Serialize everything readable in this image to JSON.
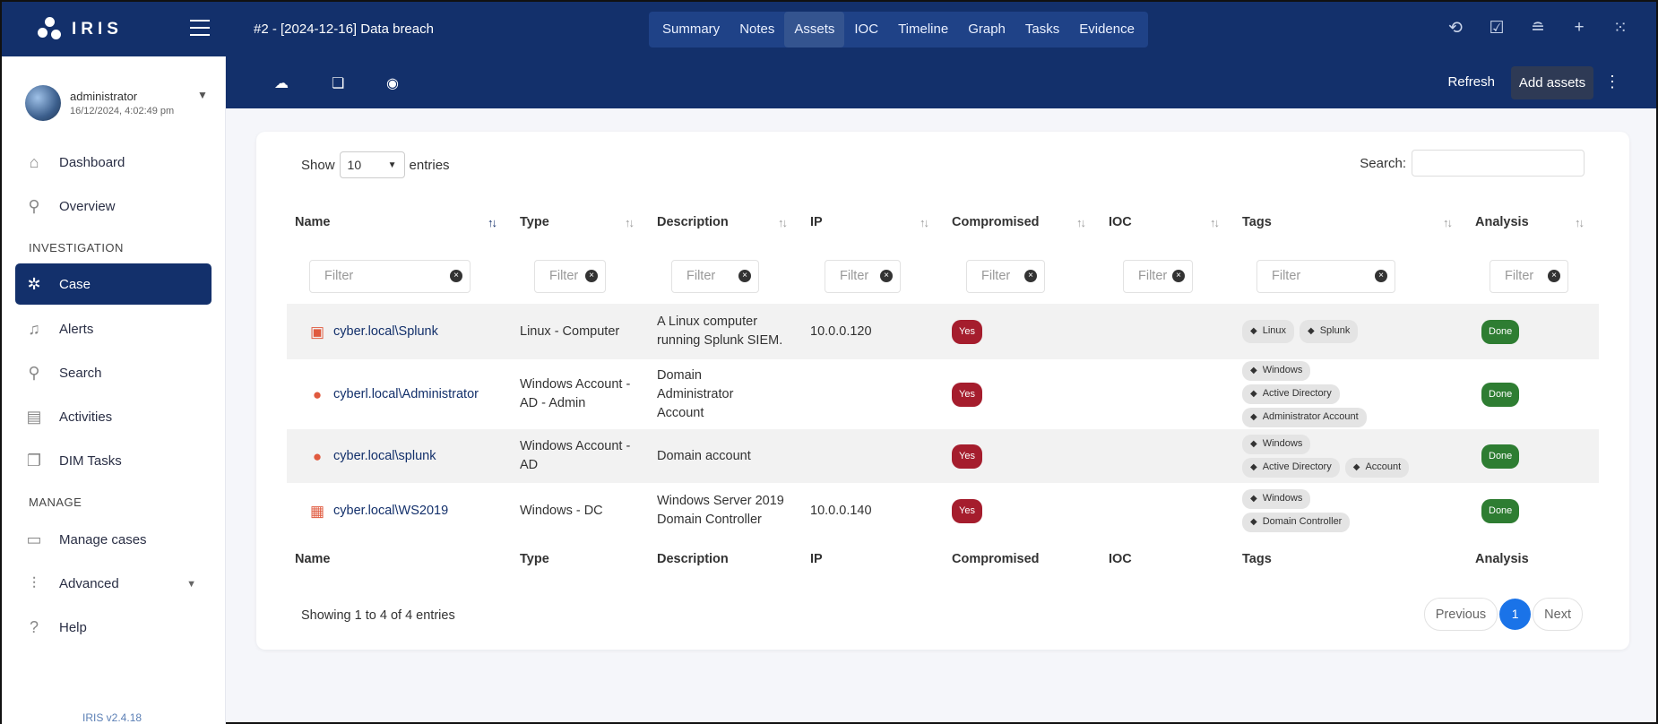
{
  "app": {
    "name": "IRIS",
    "version": "IRIS v2.4.18"
  },
  "case_title": "#2 - [2024-12-16] Data breach",
  "tabs": [
    "Summary",
    "Notes",
    "Assets",
    "IOC",
    "Timeline",
    "Graph",
    "Tasks",
    "Evidence"
  ],
  "active_tab": "Assets",
  "user": {
    "name": "administrator",
    "date": "16/12/2024, 4:02:49 pm"
  },
  "sidebar": {
    "dashboard": "Dashboard",
    "overview": "Overview",
    "investigation_heading": "INVESTIGATION",
    "case": "Case",
    "alerts": "Alerts",
    "search": "Search",
    "activities": "Activities",
    "dim_tasks": "DIM Tasks",
    "manage_heading": "MANAGE",
    "manage_cases": "Manage cases",
    "advanced": "Advanced",
    "help": "Help"
  },
  "toolbar": {
    "refresh": "Refresh",
    "add_assets": "Add assets"
  },
  "table_controls": {
    "show": "Show",
    "entries_value": "10",
    "entries": "entries",
    "search": "Search:"
  },
  "filter_placeholder": "Filter",
  "columns": [
    "Name",
    "Type",
    "Description",
    "IP",
    "Compromised",
    "IOC",
    "Tags",
    "Analysis"
  ],
  "rows": [
    {
      "name": "cyber.local\\Splunk",
      "icon": "computer-icon",
      "type": "Linux - Computer",
      "description": "A Linux computer running Splunk SIEM.",
      "ip": "10.0.0.120",
      "compromised": "Yes",
      "ioc": "",
      "tags": [
        "Linux",
        "Splunk"
      ],
      "analysis": "Done"
    },
    {
      "name": "cyberl.local\\Administrator",
      "icon": "user-icon",
      "type": "Windows Account - AD - Admin",
      "description": "Domain Administrator Account",
      "ip": "",
      "compromised": "Yes",
      "ioc": "",
      "tags": [
        "Windows",
        "Active Directory",
        "Administrator Account"
      ],
      "analysis": "Done"
    },
    {
      "name": "cyber.local\\splunk",
      "icon": "user-icon",
      "type": "Windows Account - AD",
      "description": "Domain account",
      "ip": "",
      "compromised": "Yes",
      "ioc": "",
      "tags": [
        "Windows",
        "Active Directory",
        "Account"
      ],
      "analysis": "Done"
    },
    {
      "name": "cyber.local\\WS2019",
      "icon": "server-icon",
      "type": "Windows - DC",
      "description": "Windows Server 2019 Domain Controller",
      "ip": "10.0.0.140",
      "compromised": "Yes",
      "ioc": "",
      "tags": [
        "Windows",
        "Domain Controller"
      ],
      "analysis": "Done"
    }
  ],
  "footer_info": "Showing 1 to 4 of 4 entries",
  "pagination": {
    "previous": "Previous",
    "current": "1",
    "next": "Next"
  },
  "colors": {
    "primary": "#13306b",
    "compromised": "#a51d2d",
    "done": "#2e7d32",
    "page_active": "#1a73e8"
  }
}
